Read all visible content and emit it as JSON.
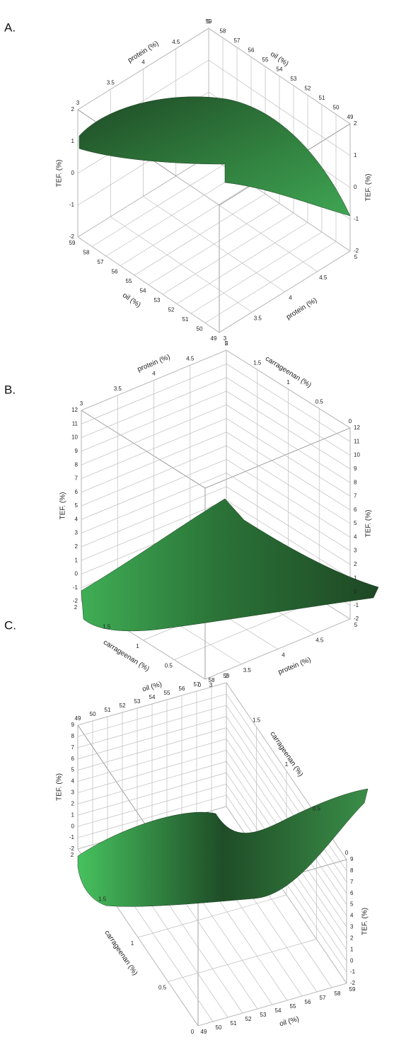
{
  "chart_data": [
    {
      "type": "surface3d",
      "label": "A.",
      "x_label": "protein (%)",
      "y_label": "oil (%)",
      "z_label": "TEF. (%)",
      "xlim": [
        3,
        5
      ],
      "xticks": [
        3,
        3.5,
        4,
        4.5,
        5
      ],
      "ylim": [
        59,
        49
      ],
      "yticks": [
        59,
        58,
        57,
        56,
        55,
        54,
        53,
        52,
        51,
        50,
        49
      ],
      "zlim": [
        -2,
        2
      ],
      "zticks": [
        -2,
        -1,
        0,
        1,
        2
      ],
      "grid": true
    },
    {
      "type": "surface3d",
      "label": "B.",
      "x_label": "protein (%)",
      "y_label": "carrageenan (%)",
      "z_label": "TEF. (%)",
      "xlim": [
        3,
        5
      ],
      "xticks": [
        3,
        3.5,
        4,
        4.5,
        5
      ],
      "ylim": [
        2,
        0
      ],
      "yticks": [
        2,
        1.5,
        1,
        0.5,
        0
      ],
      "zlim": [
        -2,
        12
      ],
      "zticks": [
        -2,
        -1,
        0,
        1,
        2,
        3,
        4,
        5,
        6,
        7,
        8,
        9,
        10,
        11,
        12
      ],
      "grid": true
    },
    {
      "type": "surface3d",
      "label": "C.",
      "x_label": "oil (%)",
      "y_label": "carrageenan (%)",
      "z_label": "TEF. (%)",
      "xlim": [
        49,
        59
      ],
      "xticks": [
        49,
        50,
        51,
        52,
        53,
        54,
        55,
        56,
        57,
        58,
        59
      ],
      "ylim": [
        2,
        0
      ],
      "yticks": [
        2,
        1.5,
        1,
        0.5,
        0
      ],
      "zlim": [
        -2,
        9
      ],
      "zticks": [
        -2,
        -1,
        0,
        1,
        2,
        3,
        4,
        5,
        6,
        7,
        8,
        9
      ],
      "grid": true
    }
  ]
}
